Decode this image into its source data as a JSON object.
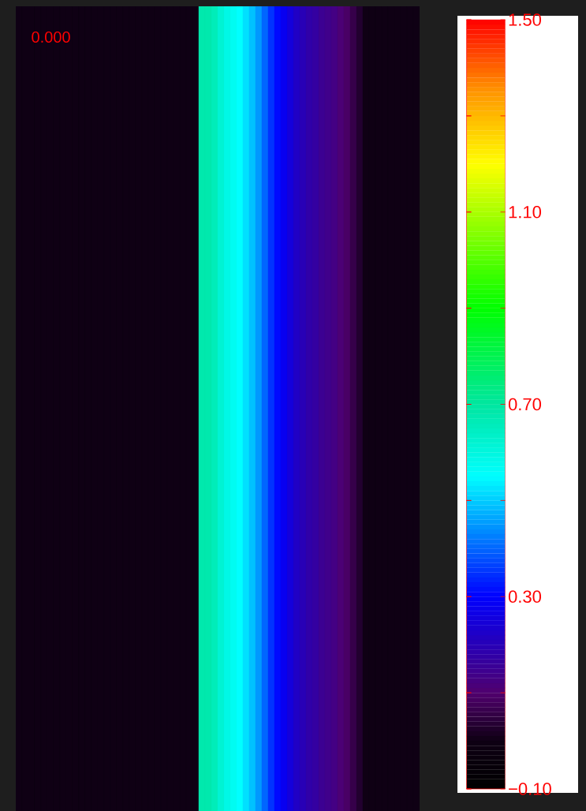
{
  "chart_data": {
    "type": "heatmap",
    "categories": [
      null,
      null,
      null,
      null,
      null,
      null,
      null,
      null,
      null,
      null,
      null,
      null,
      null,
      null,
      null,
      null,
      null,
      null,
      null,
      null,
      null,
      null,
      null,
      null,
      null,
      null,
      null,
      null,
      null,
      null,
      null,
      null,
      null,
      null,
      null,
      null,
      null,
      null,
      null,
      null,
      null,
      null,
      null,
      null,
      null,
      null,
      null,
      null,
      null,
      null,
      null,
      null,
      null,
      null,
      null,
      null,
      null,
      null,
      null,
      null,
      null,
      null,
      null,
      null
    ],
    "y_categories": [
      null
    ],
    "cells": [
      [
        0,
        0,
        0,
        0,
        0,
        0,
        0,
        0,
        0,
        0,
        0,
        0,
        0,
        0,
        0,
        0,
        0,
        0,
        0,
        0,
        0,
        0,
        0,
        0,
        0,
        0,
        0,
        0,
        0,
        0.68,
        0.68,
        0.66,
        0.62,
        0.59,
        0.57,
        0.55,
        0.52,
        0.49,
        0.45,
        0.4,
        0.35,
        0.31,
        0.28,
        0.25,
        0.22,
        0.2,
        0.18,
        0.17,
        0.15,
        0.14,
        0.13,
        0.11,
        0.09,
        0.06,
        0.03,
        0,
        0,
        0,
        0,
        0,
        0,
        0,
        0,
        0
      ]
    ],
    "clim": [
      -0.1,
      1.5
    ],
    "cticks": [
      {
        "value": -0.1,
        "label": "−0.10"
      },
      {
        "value": 0.1,
        "label": null
      },
      {
        "value": 0.3,
        "label": "0.30"
      },
      {
        "value": 0.5,
        "label": null
      },
      {
        "value": 0.7,
        "label": "0.70"
      },
      {
        "value": 0.9,
        "label": null
      },
      {
        "value": 1.1,
        "label": "1.10"
      },
      {
        "value": 1.3,
        "label": null
      },
      {
        "value": 1.5,
        "label": "1.50"
      }
    ],
    "annotations": [
      "0.000"
    ]
  }
}
